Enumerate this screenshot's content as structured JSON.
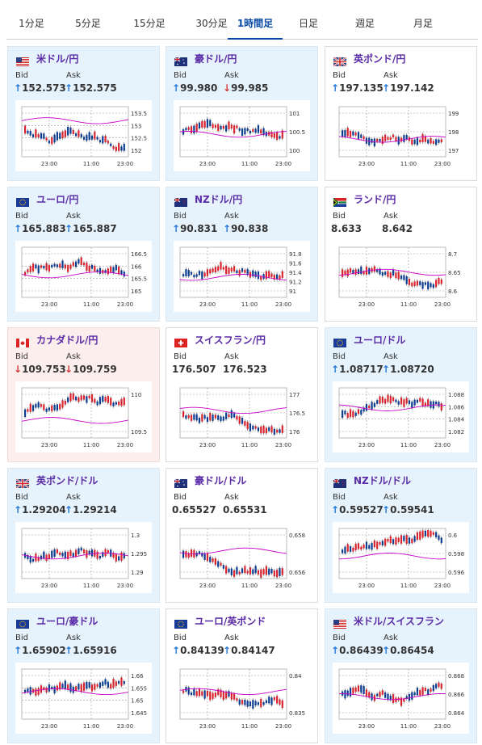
{
  "tabs": [
    {
      "label": "1分足",
      "active": false
    },
    {
      "label": "5分足",
      "active": false
    },
    {
      "label": "15分足",
      "active": false
    },
    {
      "label": "30分足",
      "active": false
    },
    {
      "label": "1時間足",
      "active": true
    },
    {
      "label": "日足",
      "active": false
    },
    {
      "label": "週足",
      "active": false
    },
    {
      "label": "月足",
      "active": false
    }
  ],
  "labels": {
    "bid": "Bid",
    "ask": "Ask"
  },
  "colors": {
    "up": "#2478d8",
    "down": "#d33a3a",
    "candle_up": "#d9232e",
    "candle_down": "#0b3d91",
    "ma": "#c800c8"
  },
  "cards": [
    {
      "pair": "米ドル/円",
      "flag": "us",
      "bid": "152.573",
      "ask": "152.575",
      "bid_dir": "up",
      "ask_dir": "up",
      "bg": "blue",
      "y_ticks": [
        "153.5",
        "153",
        "152.5",
        "152"
      ],
      "x_ticks": [
        "23:00",
        "11:00",
        "23:00"
      ],
      "ma_level": 0.72
    },
    {
      "pair": "豪ドル/円",
      "flag": "au",
      "bid": "99.980",
      "ask": "99.985",
      "bid_dir": "up",
      "ask_dir": "down",
      "bg": "blue",
      "y_ticks": [
        "101",
        "100.5",
        "100"
      ],
      "x_ticks": [
        "23:00",
        "11:00",
        "23:00"
      ],
      "ma_level": 0.45
    },
    {
      "pair": "英ポンド/円",
      "flag": "gb",
      "bid": "197.135",
      "ask": "197.142",
      "bid_dir": "up",
      "ask_dir": "up",
      "bg": "neutral",
      "y_ticks": [
        "199",
        "198",
        "197"
      ],
      "x_ticks": [
        "23:00",
        "11:00",
        "23:00"
      ],
      "ma_level": 0.35
    },
    {
      "pair": "ユーロ/円",
      "flag": "eu",
      "bid": "165.883",
      "ask": "165.887",
      "bid_dir": "up",
      "ask_dir": "up",
      "bg": "blue",
      "y_ticks": [
        "166.5",
        "166",
        "165.5",
        "165"
      ],
      "x_ticks": [
        "23:00",
        "11:00",
        "23:00"
      ],
      "ma_level": 0.45
    },
    {
      "pair": "NZドル/円",
      "flag": "nz",
      "bid": "90.831",
      "ask": "90.838",
      "bid_dir": "up",
      "ask_dir": "up",
      "bg": "blue",
      "y_ticks": [
        "91.8",
        "91.6",
        "91.4",
        "91.2",
        "91"
      ],
      "x_ticks": [
        "23:00",
        "11:00",
        "23:00"
      ],
      "ma_level": 0.4
    },
    {
      "pair": "ランド/円",
      "flag": "za",
      "bid": "8.633",
      "ask": "8.642",
      "bid_dir": "",
      "ask_dir": "",
      "bg": "neutral",
      "y_ticks": [
        "8.7",
        "8.65",
        "8.6"
      ],
      "x_ticks": [
        "23:00",
        "11:00",
        "23:00"
      ],
      "ma_level": 0.5
    },
    {
      "pair": "カナダドル/円",
      "flag": "ca",
      "bid": "109.753",
      "ask": "109.759",
      "bid_dir": "down",
      "ask_dir": "down",
      "bg": "pink",
      "y_ticks": [
        "110",
        "109.5"
      ],
      "x_ticks": [
        "23:00",
        "11:00",
        "23:00"
      ],
      "ma_level": 0.35
    },
    {
      "pair": "スイスフラン/円",
      "flag": "ch",
      "bid": "176.507",
      "ask": "176.523",
      "bid_dir": "",
      "ask_dir": "",
      "bg": "neutral",
      "y_ticks": [
        "177",
        "176.5",
        "176"
      ],
      "x_ticks": [
        "23:00",
        "11:00",
        "23:00"
      ],
      "ma_level": 0.55
    },
    {
      "pair": "ユーロ/ドル",
      "flag": "eu",
      "bid": "1.08717",
      "ask": "1.08720",
      "bid_dir": "up",
      "ask_dir": "up",
      "bg": "blue",
      "y_ticks": [
        "1.088",
        "1.086",
        "1.084",
        "1.082"
      ],
      "x_ticks": [
        "23:00",
        "11:00",
        "23:00"
      ],
      "ma_level": 0.6
    },
    {
      "pair": "英ポンド/ドル",
      "flag": "gb",
      "bid": "1.29204",
      "ask": "1.29214",
      "bid_dir": "up",
      "ask_dir": "up",
      "bg": "blue",
      "y_ticks": [
        "1.3",
        "1.295",
        "1.29"
      ],
      "x_ticks": [
        "23:00",
        "11:00",
        "23:00"
      ],
      "ma_level": 0.45
    },
    {
      "pair": "豪ドル/ドル",
      "flag": "au",
      "bid": "0.65527",
      "ask": "0.65531",
      "bid_dir": "",
      "ask_dir": "",
      "bg": "neutral",
      "y_ticks": [
        "0.658",
        "0.656"
      ],
      "x_ticks": [
        "23:00",
        "11:00",
        "23:00"
      ],
      "ma_level": 0.55
    },
    {
      "pair": "NZドル/ドル",
      "flag": "nz",
      "bid": "0.59527",
      "ask": "0.59541",
      "bid_dir": "up",
      "ask_dir": "up",
      "bg": "blue",
      "y_ticks": [
        "0.6",
        "0.598",
        "0.596"
      ],
      "x_ticks": [
        "23:00",
        "11:00",
        "23:00"
      ],
      "ma_level": 0.45
    },
    {
      "pair": "ユーロ/豪ドル",
      "flag": "eu",
      "bid": "1.65902",
      "ask": "1.65916",
      "bid_dir": "up",
      "ask_dir": "up",
      "bg": "blue",
      "y_ticks": [
        "1.66",
        "1.655",
        "1.65",
        "1.645"
      ],
      "x_ticks": [
        "23:00",
        "11:00",
        "23:00"
      ],
      "ma_level": 0.55
    },
    {
      "pair": "ユーロ/英ポンド",
      "flag": "eu",
      "bid": "0.84139",
      "ask": "0.84147",
      "bid_dir": "up",
      "ask_dir": "up",
      "bg": "neutral",
      "y_ticks": [
        "0.84",
        "0.835"
      ],
      "x_ticks": [
        "23:00",
        "11:00",
        "23:00"
      ],
      "ma_level": 0.55
    },
    {
      "pair": "米ドル/スイスフラン",
      "flag": "us",
      "bid": "0.86439",
      "ask": "0.86454",
      "bid_dir": "up",
      "ask_dir": "up",
      "bg": "blue",
      "y_ticks": [
        "0.868",
        "0.866",
        "0.864"
      ],
      "x_ticks": [
        "23:00",
        "11:00",
        "23:00"
      ],
      "ma_level": 0.45
    }
  ]
}
